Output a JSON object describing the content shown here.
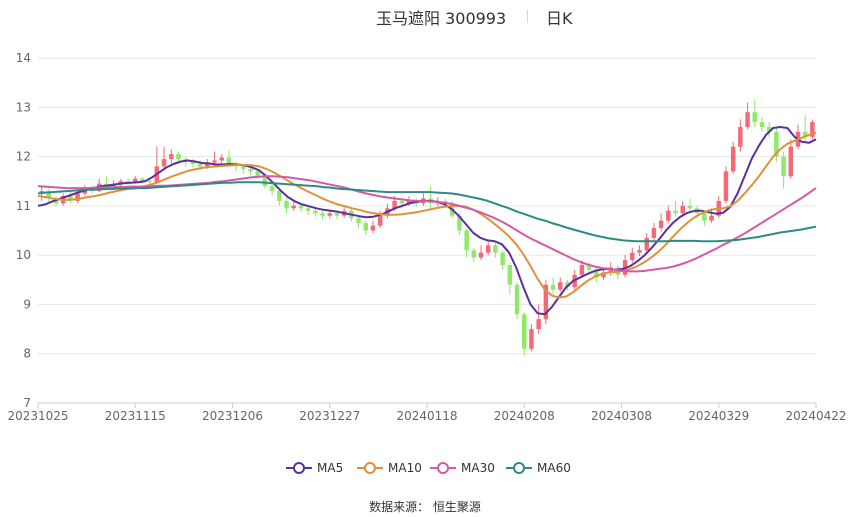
{
  "header": {
    "stock": "玉马遮阳 300993",
    "period": "日K"
  },
  "source": "数据来源： 恒生聚源",
  "legend": [
    {
      "name": "MA5",
      "color": "#5b2f9e"
    },
    {
      "name": "MA10",
      "color": "#e0913a"
    },
    {
      "name": "MA30",
      "color": "#d45aa8"
    },
    {
      "name": "MA60",
      "color": "#2f8a86"
    }
  ],
  "colors": {
    "up": "#f06b75",
    "down": "#8fe86a",
    "grid": "#e6e6e6",
    "axis_text": "#666666"
  },
  "chart_data": {
    "type": "candlestick",
    "title": "玉马遮阳 300993 日K",
    "ylim": [
      7,
      14
    ],
    "yticks": [
      7,
      8,
      9,
      10,
      11,
      12,
      13,
      14
    ],
    "xticks": [
      "20231025",
      "20231115",
      "20231206",
      "20231227",
      "20240118",
      "20240208",
      "20240308",
      "20240329",
      "20240422"
    ],
    "grid": true,
    "legend_position": "bottom-center",
    "candles": [
      [
        11.28,
        11.3,
        11.1,
        11.4
      ],
      [
        11.3,
        11.15,
        11.05,
        11.35
      ],
      [
        11.15,
        11.05,
        11.0,
        11.2
      ],
      [
        11.05,
        11.2,
        11.0,
        11.25
      ],
      [
        11.2,
        11.1,
        11.05,
        11.3
      ],
      [
        11.1,
        11.25,
        11.05,
        11.3
      ],
      [
        11.25,
        11.35,
        11.2,
        11.42
      ],
      [
        11.35,
        11.3,
        11.25,
        11.4
      ],
      [
        11.3,
        11.45,
        11.28,
        11.55
      ],
      [
        11.45,
        11.4,
        11.35,
        11.6
      ],
      [
        11.4,
        11.45,
        11.32,
        11.52
      ],
      [
        11.45,
        11.5,
        11.4,
        11.55
      ],
      [
        11.5,
        11.48,
        11.42,
        11.56
      ],
      [
        11.48,
        11.55,
        11.45,
        11.6
      ],
      [
        11.55,
        11.5,
        11.45,
        11.58
      ],
      [
        11.5,
        11.48,
        11.43,
        11.55
      ],
      [
        11.48,
        11.8,
        11.45,
        12.2
      ],
      [
        11.8,
        11.95,
        11.75,
        12.2
      ],
      [
        11.95,
        12.05,
        11.85,
        12.15
      ],
      [
        12.05,
        11.95,
        11.85,
        12.1
      ],
      [
        11.95,
        11.9,
        11.8,
        12.0
      ],
      [
        11.9,
        11.85,
        11.78,
        11.95
      ],
      [
        11.85,
        11.8,
        11.72,
        11.92
      ],
      [
        11.8,
        11.88,
        11.75,
        11.95
      ],
      [
        11.88,
        11.92,
        11.8,
        12.1
      ],
      [
        11.92,
        11.98,
        11.85,
        12.05
      ],
      [
        11.98,
        11.85,
        11.8,
        12.12
      ],
      [
        11.85,
        11.8,
        11.7,
        11.9
      ],
      [
        11.8,
        11.75,
        11.65,
        11.85
      ],
      [
        11.75,
        11.7,
        11.62,
        11.8
      ],
      [
        11.7,
        11.6,
        11.55,
        11.75
      ],
      [
        11.6,
        11.4,
        11.35,
        11.65
      ],
      [
        11.4,
        11.3,
        11.2,
        11.45
      ],
      [
        11.3,
        11.1,
        11.0,
        11.35
      ],
      [
        11.1,
        10.95,
        10.85,
        11.15
      ],
      [
        10.95,
        11.0,
        10.9,
        11.1
      ],
      [
        11.0,
        10.95,
        10.88,
        11.05
      ],
      [
        10.95,
        10.9,
        10.82,
        11.0
      ],
      [
        10.9,
        10.85,
        10.78,
        10.95
      ],
      [
        10.85,
        10.8,
        10.72,
        10.9
      ],
      [
        10.8,
        10.85,
        10.75,
        10.92
      ],
      [
        10.85,
        10.8,
        10.72,
        10.9
      ],
      [
        10.8,
        10.9,
        10.75,
        11.0
      ],
      [
        10.9,
        10.75,
        10.68,
        10.95
      ],
      [
        10.75,
        10.65,
        10.55,
        10.8
      ],
      [
        10.65,
        10.5,
        10.4,
        10.7
      ],
      [
        10.5,
        10.6,
        10.45,
        10.7
      ],
      [
        10.6,
        10.8,
        10.55,
        10.9
      ],
      [
        10.8,
        10.95,
        10.75,
        11.05
      ],
      [
        10.95,
        11.1,
        10.9,
        11.2
      ],
      [
        11.1,
        11.05,
        10.95,
        11.15
      ],
      [
        11.05,
        11.1,
        11.0,
        11.2
      ],
      [
        11.1,
        11.05,
        10.98,
        11.15
      ],
      [
        11.05,
        11.15,
        11.0,
        11.25
      ],
      [
        11.15,
        11.05,
        10.95,
        11.4
      ],
      [
        11.05,
        11.1,
        11.0,
        11.18
      ],
      [
        11.1,
        11.05,
        10.95,
        11.15
      ],
      [
        11.05,
        10.8,
        10.75,
        11.1
      ],
      [
        10.8,
        10.5,
        10.4,
        10.85
      ],
      [
        10.5,
        10.1,
        9.95,
        10.55
      ],
      [
        10.1,
        9.95,
        9.85,
        10.15
      ],
      [
        9.95,
        10.05,
        9.9,
        10.2
      ],
      [
        10.05,
        10.2,
        10.0,
        10.3
      ],
      [
        10.2,
        10.05,
        9.95,
        10.25
      ],
      [
        10.05,
        9.8,
        9.7,
        10.1
      ],
      [
        9.8,
        9.4,
        9.2,
        9.85
      ],
      [
        9.4,
        8.8,
        8.7,
        9.45
      ],
      [
        8.8,
        8.1,
        7.95,
        8.85
      ],
      [
        8.1,
        8.5,
        8.05,
        8.6
      ],
      [
        8.5,
        8.7,
        8.4,
        9.0
      ],
      [
        8.7,
        9.4,
        8.6,
        9.5
      ],
      [
        9.4,
        9.3,
        9.2,
        9.55
      ],
      [
        9.3,
        9.45,
        9.25,
        9.55
      ],
      [
        9.45,
        9.35,
        9.28,
        9.5
      ],
      [
        9.35,
        9.6,
        9.3,
        9.7
      ],
      [
        9.6,
        9.8,
        9.55,
        9.9
      ],
      [
        9.8,
        9.7,
        9.6,
        9.85
      ],
      [
        9.7,
        9.55,
        9.45,
        9.75
      ],
      [
        9.55,
        9.65,
        9.5,
        9.72
      ],
      [
        9.65,
        9.75,
        9.58,
        9.85
      ],
      [
        9.75,
        9.6,
        9.5,
        9.8
      ],
      [
        9.6,
        9.9,
        9.55,
        10.0
      ],
      [
        9.9,
        10.05,
        9.85,
        10.15
      ],
      [
        10.05,
        10.1,
        9.98,
        10.2
      ],
      [
        10.1,
        10.35,
        10.05,
        10.45
      ],
      [
        10.35,
        10.55,
        10.3,
        10.65
      ],
      [
        10.55,
        10.7,
        10.48,
        10.85
      ],
      [
        10.7,
        10.9,
        10.65,
        11.0
      ],
      [
        10.9,
        10.85,
        10.78,
        11.1
      ],
      [
        10.85,
        11.0,
        10.8,
        11.1
      ],
      [
        11.0,
        10.95,
        10.88,
        11.15
      ],
      [
        10.95,
        10.85,
        10.75,
        11.0
      ],
      [
        10.85,
        10.7,
        10.6,
        10.9
      ],
      [
        10.7,
        10.8,
        10.65,
        10.95
      ],
      [
        10.8,
        11.1,
        10.75,
        11.2
      ],
      [
        11.1,
        11.7,
        11.05,
        11.8
      ],
      [
        11.7,
        12.2,
        11.65,
        12.3
      ],
      [
        12.2,
        12.6,
        12.1,
        12.75
      ],
      [
        12.6,
        12.9,
        12.55,
        13.1
      ],
      [
        12.9,
        12.7,
        12.6,
        13.15
      ],
      [
        12.7,
        12.6,
        12.5,
        12.8
      ],
      [
        12.6,
        12.5,
        12.4,
        12.7
      ],
      [
        12.5,
        12.0,
        11.9,
        12.6
      ],
      [
        12.0,
        11.6,
        11.35,
        12.1
      ],
      [
        11.6,
        12.2,
        11.55,
        12.35
      ],
      [
        12.2,
        12.5,
        12.15,
        12.65
      ],
      [
        12.5,
        12.4,
        12.3,
        12.85
      ],
      [
        12.4,
        12.7,
        12.35,
        12.75
      ]
    ],
    "series": [
      {
        "name": "MA5",
        "values": [
          11.0,
          11.03,
          11.09,
          11.14,
          11.19,
          11.24,
          11.29,
          11.33,
          11.37,
          11.4,
          11.42,
          11.44,
          11.46,
          11.47,
          11.48,
          11.5,
          11.58,
          11.68,
          11.78,
          11.85,
          11.9,
          11.92,
          11.9,
          11.87,
          11.86,
          11.84,
          11.84,
          11.85,
          11.84,
          11.82,
          11.78,
          11.72,
          11.6,
          11.46,
          11.31,
          11.18,
          11.09,
          11.03,
          10.99,
          10.95,
          10.92,
          10.9,
          10.88,
          10.85,
          10.82,
          10.79,
          10.77,
          10.78,
          10.82,
          10.88,
          10.95,
          11.0,
          11.05,
          11.08,
          11.1,
          11.1,
          11.08,
          11.03,
          10.93,
          10.79,
          10.62,
          10.45,
          10.35,
          10.3,
          10.28,
          10.22,
          10.05,
          9.75,
          9.35,
          9.0,
          8.82,
          8.8,
          8.95,
          9.15,
          9.35,
          9.48,
          9.55,
          9.62,
          9.68,
          9.71,
          9.72,
          9.7,
          9.72,
          9.78,
          9.88,
          10.0,
          10.15,
          10.32,
          10.5,
          10.66,
          10.78,
          10.86,
          10.9,
          10.9,
          10.87,
          10.84,
          10.86,
          10.98,
          11.25,
          11.6,
          11.96,
          12.22,
          12.44,
          12.58,
          12.6,
          12.58,
          12.4,
          12.3,
          12.28,
          12.35
        ]
      },
      {
        "name": "MA10",
        "values": [
          11.2,
          11.18,
          11.15,
          11.13,
          11.12,
          11.13,
          11.15,
          11.18,
          11.2,
          11.23,
          11.27,
          11.3,
          11.33,
          11.36,
          11.38,
          11.4,
          11.44,
          11.49,
          11.55,
          11.61,
          11.66,
          11.71,
          11.74,
          11.77,
          11.79,
          11.8,
          11.81,
          11.82,
          11.83,
          11.83,
          11.82,
          11.8,
          11.75,
          11.68,
          11.6,
          11.51,
          11.43,
          11.35,
          11.28,
          11.21,
          11.14,
          11.08,
          11.03,
          10.99,
          10.95,
          10.92,
          10.88,
          10.85,
          10.83,
          10.82,
          10.82,
          10.83,
          10.85,
          10.87,
          10.9,
          10.93,
          10.96,
          10.98,
          11.0,
          11.0,
          10.98,
          10.92,
          10.84,
          10.74,
          10.63,
          10.51,
          10.38,
          10.22,
          10.02,
          9.78,
          9.52,
          9.3,
          9.18,
          9.14,
          9.16,
          9.25,
          9.37,
          9.48,
          9.56,
          9.62,
          9.65,
          9.66,
          9.68,
          9.72,
          9.78,
          9.86,
          9.96,
          10.08,
          10.22,
          10.38,
          10.53,
          10.66,
          10.77,
          10.85,
          10.91,
          10.94,
          10.95,
          10.99,
          11.1,
          11.25,
          11.42,
          11.6,
          11.8,
          12.0,
          12.15,
          12.26,
          12.32,
          12.38,
          12.44,
          12.48
        ]
      },
      {
        "name": "MA30",
        "values": [
          11.4,
          11.39,
          11.38,
          11.37,
          11.36,
          11.36,
          11.36,
          11.36,
          11.37,
          11.37,
          11.38,
          11.38,
          11.38,
          11.39,
          11.39,
          11.39,
          11.4,
          11.41,
          11.41,
          11.42,
          11.43,
          11.44,
          11.45,
          11.46,
          11.47,
          11.49,
          11.5,
          11.52,
          11.54,
          11.56,
          11.58,
          11.59,
          11.6,
          11.6,
          11.59,
          11.58,
          11.56,
          11.54,
          11.52,
          11.49,
          11.46,
          11.43,
          11.4,
          11.37,
          11.33,
          11.29,
          11.25,
          11.22,
          11.19,
          11.17,
          11.15,
          11.13,
          11.11,
          11.1,
          11.1,
          11.09,
          11.08,
          11.06,
          11.04,
          11.0,
          10.96,
          10.92,
          10.87,
          10.81,
          10.75,
          10.68,
          10.6,
          10.51,
          10.42,
          10.34,
          10.27,
          10.2,
          10.13,
          10.06,
          9.99,
          9.92,
          9.86,
          9.81,
          9.77,
          9.74,
          9.72,
          9.7,
          9.68,
          9.67,
          9.67,
          9.68,
          9.7,
          9.72,
          9.74,
          9.77,
          9.81,
          9.86,
          9.92,
          9.99,
          10.06,
          10.13,
          10.21,
          10.28,
          10.36,
          10.44,
          10.53,
          10.62,
          10.71,
          10.8,
          10.89,
          10.98,
          11.07,
          11.16,
          11.26,
          11.36
        ]
      },
      {
        "name": "MA60",
        "values": [
          11.25,
          11.27,
          11.28,
          11.29,
          11.3,
          11.31,
          11.32,
          11.33,
          11.33,
          11.34,
          11.34,
          11.35,
          11.35,
          11.35,
          11.36,
          11.36,
          11.37,
          11.38,
          11.39,
          11.4,
          11.41,
          11.42,
          11.43,
          11.44,
          11.45,
          11.46,
          11.47,
          11.47,
          11.48,
          11.48,
          11.48,
          11.48,
          11.47,
          11.46,
          11.45,
          11.44,
          11.43,
          11.42,
          11.41,
          11.4,
          11.38,
          11.37,
          11.35,
          11.34,
          11.33,
          11.32,
          11.31,
          11.3,
          11.29,
          11.28,
          11.28,
          11.28,
          11.28,
          11.28,
          11.28,
          11.28,
          11.27,
          11.26,
          11.25,
          11.23,
          11.2,
          11.17,
          11.14,
          11.1,
          11.05,
          11.0,
          10.95,
          10.89,
          10.84,
          10.79,
          10.74,
          10.7,
          10.65,
          10.61,
          10.56,
          10.52,
          10.48,
          10.44,
          10.4,
          10.37,
          10.34,
          10.32,
          10.3,
          10.29,
          10.28,
          10.28,
          10.28,
          10.28,
          10.28,
          10.29,
          10.29,
          10.29,
          10.29,
          10.28,
          10.28,
          10.28,
          10.29,
          10.3,
          10.31,
          10.33,
          10.35,
          10.37,
          10.4,
          10.43,
          10.46,
          10.48,
          10.5,
          10.52,
          10.55,
          10.58
        ]
      }
    ]
  }
}
